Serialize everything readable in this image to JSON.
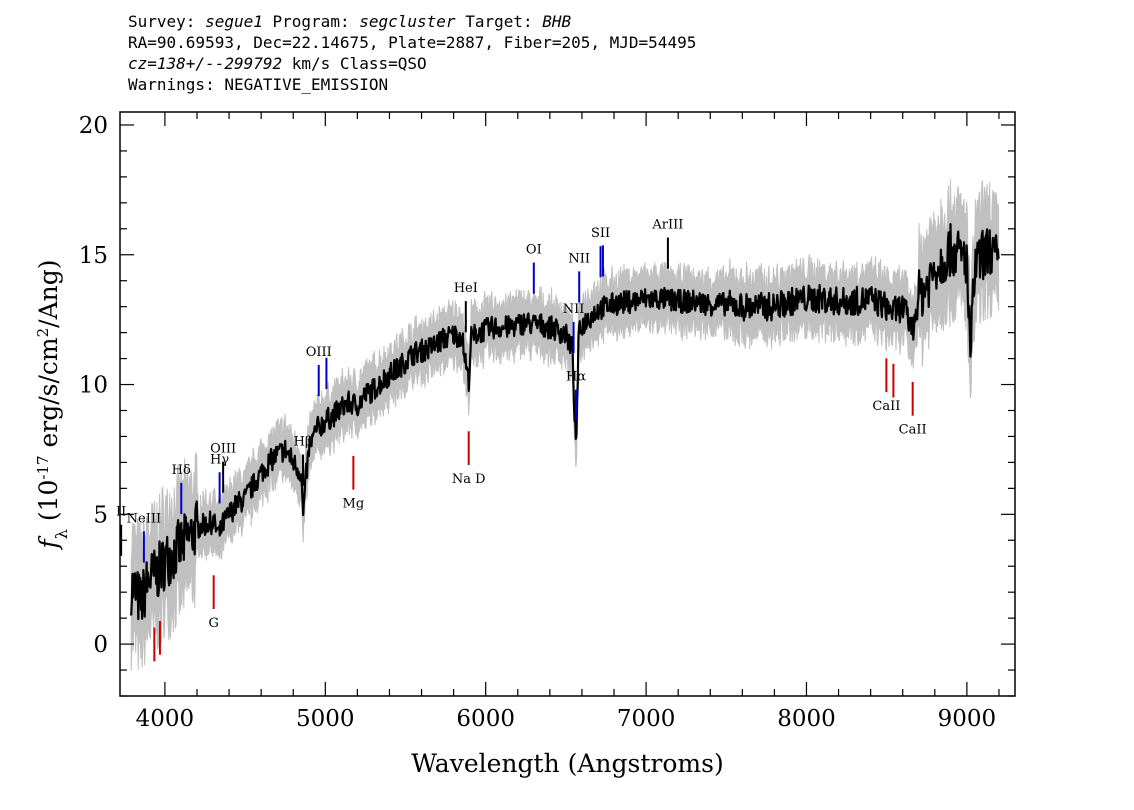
{
  "header": {
    "survey_label": "Survey:",
    "survey": "segue1",
    "program_label": "Program:",
    "program": "segcluster",
    "target_label": "Target:",
    "target": "BHB",
    "line2": "RA=90.69593, Dec=22.14675, Plate=2887, Fiber=205, MJD=54495",
    "cz": "cz=138+/--299792",
    "cz_rest": " km/s Class=QSO",
    "warnings": "Warnings: NEGATIVE_EMISSION"
  },
  "chart_data": {
    "type": "line",
    "title": "",
    "xlabel": "Wavelength (Angstroms)",
    "ylabel": "f_λ (10^-17 erg/s/cm^2/Ang)",
    "xlim": [
      3720,
      9300
    ],
    "ylim": [
      -2,
      20.5
    ],
    "xticks": [
      4000,
      5000,
      6000,
      7000,
      8000,
      9000
    ],
    "yticks": [
      0,
      5,
      10,
      15,
      20
    ],
    "grid": false,
    "legend": "none",
    "colors": {
      "flux": "#000000",
      "error": "#c0c0c0",
      "emission": "#0000cc",
      "absorption": "#cc0000",
      "sky": "#000000"
    },
    "series": [
      {
        "x": [
          3800,
          3850,
          3900,
          3950,
          4000,
          4050,
          4100,
          4150,
          4200,
          4250,
          4300,
          4340,
          4360,
          4400,
          4450,
          4500,
          4550,
          4600,
          4650,
          4700,
          4750,
          4800,
          4850,
          4861,
          4880,
          4900,
          4950,
          5000,
          5050,
          5100,
          5150,
          5200,
          5250,
          5300,
          5350,
          5400,
          5450,
          5500,
          5550,
          5600,
          5650,
          5700,
          5750,
          5800,
          5850,
          5893,
          5910,
          5950,
          6000,
          6050,
          6100,
          6150,
          6200,
          6250,
          6300,
          6350,
          6400,
          6450,
          6500,
          6540,
          6563,
          6580,
          6600,
          6650,
          6700,
          6750,
          6800,
          6900,
          7000,
          7100,
          7200,
          7300,
          7400,
          7500,
          7600,
          7700,
          7800,
          7900,
          8000,
          8100,
          8200,
          8300,
          8400,
          8500,
          8542,
          8600,
          8662,
          8700,
          8750,
          8800,
          8850,
          8900,
          8950,
          9000,
          9020,
          9050,
          9100,
          9150,
          9200
        ],
        "values": [
          2.2,
          1.6,
          2.5,
          2.7,
          3.2,
          3.5,
          3.8,
          4.1,
          4.5,
          4.6,
          4.7,
          4.2,
          4.6,
          5.0,
          5.4,
          5.6,
          6.1,
          6.6,
          7.0,
          7.3,
          7.5,
          7.0,
          6.6,
          4.9,
          6.4,
          7.6,
          8.3,
          8.6,
          8.8,
          9.1,
          9.3,
          9.2,
          9.6,
          9.8,
          10.1,
          10.4,
          10.6,
          10.9,
          11.2,
          11.3,
          11.4,
          11.6,
          11.8,
          11.9,
          11.9,
          10.1,
          11.8,
          12.0,
          12.1,
          12.2,
          12.2,
          12.2,
          12.3,
          12.4,
          12.3,
          12.3,
          12.2,
          12.1,
          11.9,
          11.4,
          7.4,
          11.9,
          12.3,
          12.6,
          12.9,
          13.0,
          13.1,
          13.2,
          13.3,
          13.3,
          13.2,
          13.2,
          13.1,
          13.1,
          13.0,
          13.0,
          13.0,
          13.2,
          13.3,
          13.3,
          13.2,
          13.2,
          13.3,
          13.0,
          12.8,
          13.0,
          12.1,
          13.4,
          13.8,
          14.5,
          14.8,
          15.2,
          15.0,
          14.8,
          11.0,
          14.5,
          15.0,
          15.2,
          14.6
        ]
      }
    ],
    "spectral_lines": [
      {
        "label": "NeIII",
        "wave": 3869,
        "kind": "emission"
      },
      {
        "label": "Hδ",
        "wave": 4102,
        "kind": "emission"
      },
      {
        "label": "Hγ",
        "wave": 4341,
        "kind": "emission"
      },
      {
        "label": "OIII",
        "wave": 4363,
        "kind": "sky"
      },
      {
        "label": "Hβ",
        "wave": 4861,
        "kind": "sky"
      },
      {
        "label": "OIII",
        "wave": 4959,
        "kind": "emission"
      },
      {
        "label": "OIII",
        "wave": 5007,
        "kind": "emission"
      },
      {
        "label": "HeI",
        "wave": 5876,
        "kind": "sky"
      },
      {
        "label": "OI",
        "wave": 6300,
        "kind": "emission"
      },
      {
        "label": "NII",
        "wave": 6548,
        "kind": "emission"
      },
      {
        "label": "Hα",
        "wave": 6563,
        "kind": "emission"
      },
      {
        "label": "NII",
        "wave": 6583,
        "kind": "emission"
      },
      {
        "label": "SII",
        "wave": 6716,
        "kind": "emission"
      },
      {
        "label": "SII",
        "wave": 6731,
        "kind": "emission"
      },
      {
        "label": "ArIII",
        "wave": 7136,
        "kind": "sky"
      },
      {
        "label": "G",
        "wave": 4304,
        "kind": "absorption"
      },
      {
        "label": "Mg",
        "wave": 5175,
        "kind": "absorption"
      },
      {
        "label": "Na D",
        "wave": 5894,
        "kind": "absorption"
      },
      {
        "label": "CaII",
        "wave": 8498,
        "kind": "absorption"
      },
      {
        "label": "CaII",
        "wave": 8542,
        "kind": "absorption"
      },
      {
        "label": "CaII",
        "wave": 8662,
        "kind": "absorption"
      },
      {
        "label": "",
        "wave": 3934,
        "kind": "absorption"
      },
      {
        "label": "",
        "wave": 3969,
        "kind": "absorption"
      },
      {
        "label": "II",
        "wave": 3727,
        "kind": "sky"
      }
    ]
  }
}
